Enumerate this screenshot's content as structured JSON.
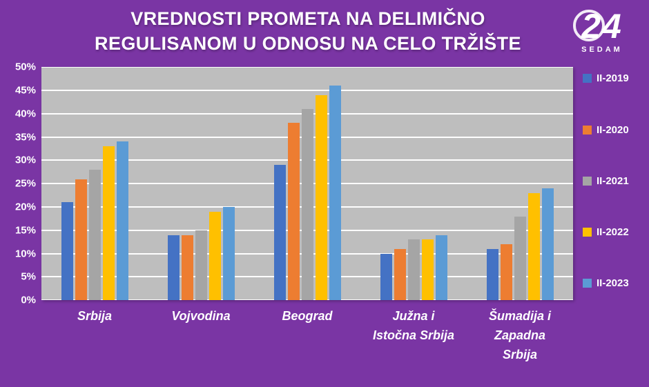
{
  "background_color": "#7A35A4",
  "header": {
    "title_line1": "VREDNOSTI PROMETA NA DELIMIČNO",
    "title_line2": "REGULISANOM U ODNOSU NA CELO TRŽIŠTE",
    "logo": {
      "number": "24",
      "text": "SEDAM"
    }
  },
  "chart_data": {
    "type": "bar",
    "title": "VREDNOSTI PROMETA NA DELIMIČNO REGULISANOM U ODNOSU NA CELO TRŽIŠTE",
    "categories": [
      "Srbija",
      "Vojvodina",
      "Beograd",
      "Južna i\nIstočna Srbija",
      "Šumadija i\nZapadna\nSrbija"
    ],
    "series": [
      {
        "name": "II-2019",
        "color": "#4472C4",
        "values": [
          21,
          14,
          29,
          10,
          11
        ]
      },
      {
        "name": "II-2020",
        "color": "#ED7D31",
        "values": [
          26,
          14,
          38,
          11,
          12
        ]
      },
      {
        "name": "II-2021",
        "color": "#A5A5A5",
        "values": [
          28,
          15,
          41,
          13,
          18
        ]
      },
      {
        "name": "II-2022",
        "color": "#FFC000",
        "values": [
          33,
          19,
          44,
          13,
          23
        ]
      },
      {
        "name": "II-2023",
        "color": "#5B9BD5",
        "values": [
          34,
          20,
          46,
          14,
          24
        ]
      }
    ],
    "xlabel": "",
    "ylabel": "",
    "ylim": [
      0,
      50
    ],
    "ytick_step": 5,
    "ytick_format": "percent",
    "grid": true,
    "plot_bg": "#BEBEBE",
    "grid_color": "#FFFFFF",
    "legend_position": "right"
  }
}
